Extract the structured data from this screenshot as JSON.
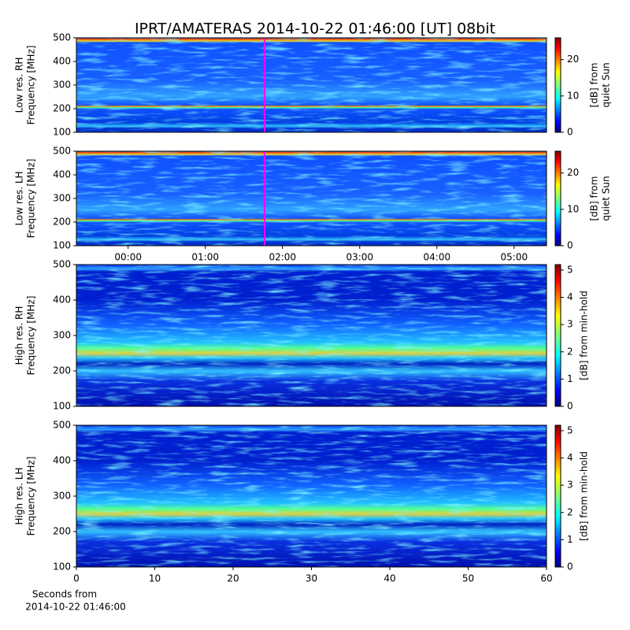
{
  "title": "IPRT/AMATERAS 2014-10-22 01:46:00 [UT]   08bit",
  "chart_data": [
    {
      "type": "heatmap",
      "ylabel": [
        "Low res. RH",
        "Frequency [MHz]"
      ],
      "xlim": [
        -0.67,
        5.42
      ],
      "ylim": [
        100,
        500
      ],
      "yticks": [
        100,
        200,
        300,
        400,
        500
      ],
      "marker_x": 1.767,
      "marker_color": "#ff00ff",
      "colorbar": {
        "label": [
          "[dB] from",
          "quiet Sun"
        ],
        "lim": [
          0,
          26
        ],
        "ticks": [
          0,
          10,
          20
        ]
      }
    },
    {
      "type": "heatmap",
      "ylabel": [
        "Low res. LH",
        "Frequency [MHz]"
      ],
      "xlim": [
        -0.67,
        5.42
      ],
      "ylim": [
        100,
        500
      ],
      "yticks": [
        100,
        200,
        300,
        400,
        500
      ],
      "xticks": [
        {
          "value": 0,
          "label": "00:00"
        },
        {
          "value": 1,
          "label": "01:00"
        },
        {
          "value": 2,
          "label": "02:00"
        },
        {
          "value": 3,
          "label": "03:00"
        },
        {
          "value": 4,
          "label": "04:00"
        },
        {
          "value": 5,
          "label": "05:00"
        }
      ],
      "marker_x": 1.767,
      "marker_color": "#ff00ff",
      "colorbar": {
        "label": [
          "[dB] from",
          "quiet Sun"
        ],
        "lim": [
          0,
          26
        ],
        "ticks": [
          0,
          10,
          20
        ]
      }
    },
    {
      "type": "heatmap",
      "ylabel": [
        "High res. RH",
        "Frequency [MHz]"
      ],
      "xlim": [
        0,
        60
      ],
      "ylim": [
        100,
        500
      ],
      "yticks": [
        100,
        200,
        300,
        400,
        500
      ],
      "colorbar": {
        "label": [
          "[dB] from min-hold"
        ],
        "lim": [
          0,
          5.2
        ],
        "ticks": [
          0,
          1,
          2,
          3,
          4,
          5
        ]
      }
    },
    {
      "type": "heatmap",
      "ylabel": [
        "High res. LH",
        "Frequency [MHz]"
      ],
      "xlim": [
        0,
        60
      ],
      "ylim": [
        100,
        500
      ],
      "yticks": [
        100,
        200,
        300,
        400,
        500
      ],
      "xticks": [
        0,
        10,
        20,
        30,
        40,
        50,
        60
      ],
      "xlabel": [
        "Seconds from",
        "2014-10-22 01:46:00"
      ],
      "colorbar": {
        "label": [
          "[dB] from min-hold"
        ],
        "lim": [
          0,
          5.2
        ],
        "ticks": [
          0,
          1,
          2,
          3,
          4,
          5
        ]
      }
    }
  ]
}
